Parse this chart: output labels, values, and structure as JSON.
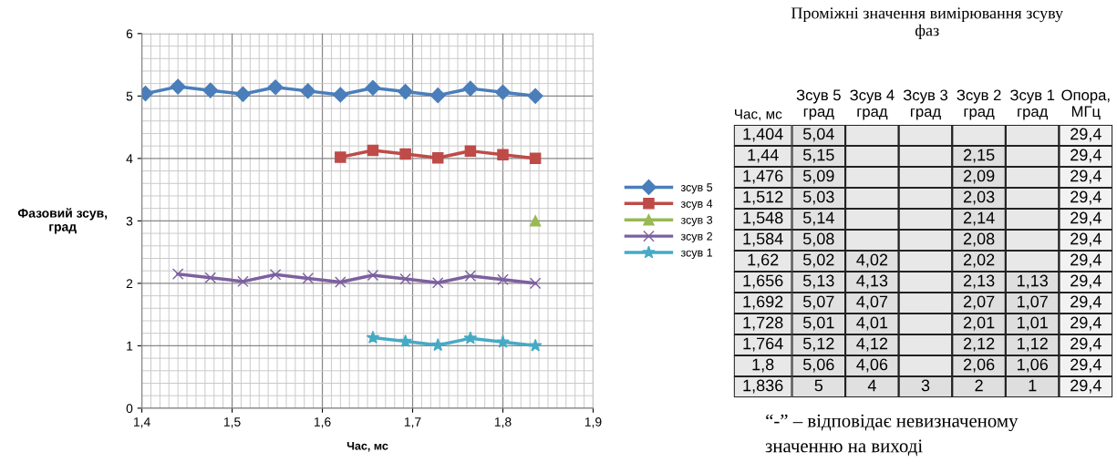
{
  "chart_data": [
    {
      "type": "line",
      "xlabel": "Час, мс",
      "ylabel": "Фазовий зсув,\nград",
      "xlim": [
        1.4,
        1.9
      ],
      "ylim": [
        0,
        6
      ],
      "xticks": [
        {
          "value": 1.4,
          "label": "1,4"
        },
        {
          "value": 1.5,
          "label": "1,5"
        },
        {
          "value": 1.6,
          "label": "1,6"
        },
        {
          "value": 1.7,
          "label": "1,7"
        },
        {
          "value": 1.8,
          "label": "1,8"
        },
        {
          "value": 1.9,
          "label": "1,9"
        }
      ],
      "yticks": [
        0,
        1,
        2,
        3,
        4,
        5,
        6
      ],
      "grid": true,
      "legend": "right",
      "series": [
        {
          "name": "зсув 5",
          "color": "#4a7ebb",
          "marker": "diamond",
          "x": [
            1.404,
            1.44,
            1.476,
            1.512,
            1.548,
            1.584,
            1.62,
            1.656,
            1.692,
            1.728,
            1.764,
            1.8,
            1.836
          ],
          "values": [
            5.04,
            5.15,
            5.09,
            5.03,
            5.14,
            5.08,
            5.02,
            5.13,
            5.07,
            5.01,
            5.12,
            5.06,
            5
          ]
        },
        {
          "name": "зсув 4",
          "color": "#be4b48",
          "marker": "square",
          "x": [
            1.62,
            1.656,
            1.692,
            1.728,
            1.764,
            1.8,
            1.836
          ],
          "values": [
            4.02,
            4.13,
            4.07,
            4.01,
            4.12,
            4.06,
            4
          ]
        },
        {
          "name": "зсув 3",
          "color": "#98b954",
          "marker": "triangle",
          "x": [
            1.836
          ],
          "values": [
            3
          ]
        },
        {
          "name": "зсув 2",
          "color": "#7d60a0",
          "marker": "cross",
          "x": [
            1.44,
            1.476,
            1.512,
            1.548,
            1.584,
            1.62,
            1.656,
            1.692,
            1.728,
            1.764,
            1.8,
            1.836
          ],
          "values": [
            2.15,
            2.09,
            2.03,
            2.14,
            2.08,
            2.02,
            2.13,
            2.07,
            2.01,
            2.12,
            2.06,
            2
          ]
        },
        {
          "name": "зсув 1",
          "color": "#46aac5",
          "marker": "star",
          "x": [
            1.656,
            1.692,
            1.728,
            1.764,
            1.8,
            1.836
          ],
          "values": [
            1.13,
            1.07,
            1.01,
            1.12,
            1.06,
            1
          ]
        }
      ]
    },
    {
      "type": "heatmap",
      "title": "Проміжні значення вимірювання зсуву\nфаз",
      "ylabel": "Час, мс",
      "annotations": [
        "“-” – відповідає невизначеному\nзначенню на виході"
      ],
      "color": "#e8e8e8",
      "categories": [
        "Зсув 5\nград",
        "Зсув 4\nград",
        "Зсув 3\nград",
        "Зсув 2\nград",
        "Зсув 1\nград",
        "Опора,\nМГц"
      ],
      "y_categories": [
        "1,404",
        "1,44",
        "1,476",
        "1,512",
        "1,548",
        "1,584",
        "1,62",
        "1,656",
        "1,692",
        "1,728",
        "1,764",
        "1,8",
        "1,836"
      ],
      "cells": [
        [
          5.04,
          null,
          null,
          null,
          null,
          29.4
        ],
        [
          5.15,
          null,
          null,
          2.15,
          null,
          29.4
        ],
        [
          5.09,
          null,
          null,
          2.09,
          null,
          29.4
        ],
        [
          5.03,
          null,
          null,
          2.03,
          null,
          29.4
        ],
        [
          5.14,
          null,
          null,
          2.14,
          null,
          29.4
        ],
        [
          5.08,
          null,
          null,
          2.08,
          null,
          29.4
        ],
        [
          5.02,
          4.02,
          null,
          2.02,
          null,
          29.4
        ],
        [
          5.13,
          4.13,
          null,
          2.13,
          1.13,
          29.4
        ],
        [
          5.07,
          4.07,
          null,
          2.07,
          1.07,
          29.4
        ],
        [
          5.01,
          4.01,
          null,
          2.01,
          1.01,
          29.4
        ],
        [
          5.12,
          4.12,
          null,
          2.12,
          1.12,
          29.4
        ],
        [
          5.06,
          4.06,
          null,
          2.06,
          1.06,
          29.4
        ],
        [
          5,
          4,
          3,
          2,
          1,
          29.4
        ]
      ],
      "cell_labels": [
        [
          "5,04",
          null,
          null,
          null,
          null,
          "29,4"
        ],
        [
          "5,15",
          null,
          null,
          "2,15",
          null,
          "29,4"
        ],
        [
          "5,09",
          null,
          null,
          "2,09",
          null,
          "29,4"
        ],
        [
          "5,03",
          null,
          null,
          "2,03",
          null,
          "29,4"
        ],
        [
          "5,14",
          null,
          null,
          "2,14",
          null,
          "29,4"
        ],
        [
          "5,08",
          null,
          null,
          "2,08",
          null,
          "29,4"
        ],
        [
          "5,02",
          "4,02",
          null,
          "2,02",
          null,
          "29,4"
        ],
        [
          "5,13",
          "4,13",
          null,
          "2,13",
          "1,13",
          "29,4"
        ],
        [
          "5,07",
          "4,07",
          null,
          "2,07",
          "1,07",
          "29,4"
        ],
        [
          "5,01",
          "4,01",
          null,
          "2,01",
          "1,01",
          "29,4"
        ],
        [
          "5,12",
          "4,12",
          null,
          "2,12",
          "1,12",
          "29,4"
        ],
        [
          "5,06",
          "4,06",
          null,
          "2,06",
          "1,06",
          "29,4"
        ],
        [
          "5",
          "4",
          "3",
          "2",
          "1",
          "29,4"
        ]
      ]
    }
  ]
}
